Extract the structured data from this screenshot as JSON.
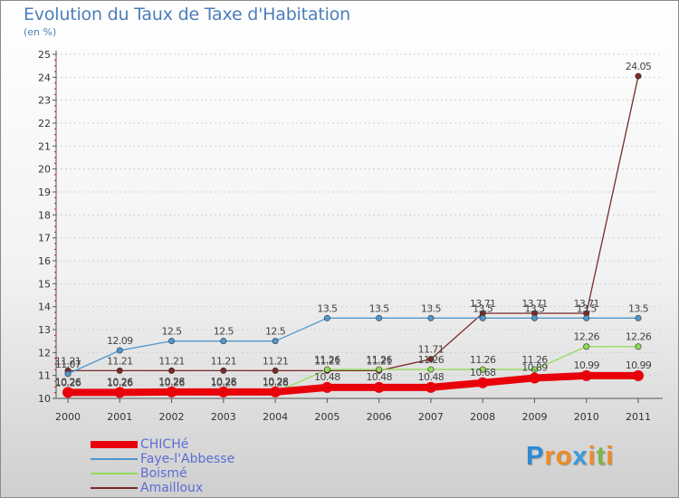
{
  "title": "Evolution du Taux de Taxe d'Habitation",
  "unit_label": "(en %)",
  "brand": {
    "letters": [
      {
        "ch": "P",
        "color": "#2a8bd6"
      },
      {
        "ch": "r",
        "color": "#f08a24"
      },
      {
        "ch": "o",
        "color": "#f08a24"
      },
      {
        "ch": "x",
        "color": "#3a9ad9"
      },
      {
        "ch": "i",
        "color": "#f08a24"
      },
      {
        "ch": "t",
        "color": "#7ab648"
      },
      {
        "ch": "i",
        "color": "#f08a24"
      }
    ]
  },
  "chart_data": {
    "type": "line",
    "title": "Evolution du Taux de Taxe d'Habitation",
    "ylabel": "(en %)",
    "xlabel": "",
    "x": [
      "2000",
      "2001",
      "2002",
      "2003",
      "2004",
      "2005",
      "2006",
      "2007",
      "2008",
      "2009",
      "2010",
      "2011"
    ],
    "ylim": [
      10,
      25
    ],
    "yticks": [
      "10",
      "11",
      "12",
      "13",
      "14",
      "15",
      "16",
      "17",
      "18",
      "19",
      "20",
      "21",
      "22",
      "23",
      "24",
      "25"
    ],
    "grid": "horizontal dashed",
    "legend": "bottom-left",
    "series": [
      {
        "name": "CHICHé",
        "color": "#e8000b",
        "values": [
          10.26,
          10.26,
          10.28,
          10.28,
          10.28,
          10.48,
          10.48,
          10.48,
          10.68,
          10.89,
          10.99,
          10.99
        ],
        "labels": [
          "10.26",
          "10.26",
          "10.28",
          "10.28",
          "10.28",
          "10.48",
          "10.48",
          "10.48",
          "10.68",
          "10.89",
          "10.99",
          "10.99"
        ]
      },
      {
        "name": "Faye-l'Abbesse",
        "color": "#4f97cc",
        "values": [
          11.07,
          12.09,
          12.5,
          12.5,
          12.5,
          13.5,
          13.5,
          13.5,
          13.5,
          13.5,
          13.5,
          13.5
        ],
        "labels": [
          "11.07",
          "12.09",
          "12.5",
          "12.5",
          "12.5",
          "13.5",
          "13.5",
          "13.5",
          "13.5",
          "13.5",
          "13.5",
          "13.5"
        ]
      },
      {
        "name": "Boismé",
        "color": "#8fdc5a",
        "values": [
          10.26,
          10.26,
          10.26,
          10.26,
          10.26,
          11.26,
          11.26,
          11.26,
          11.26,
          11.26,
          12.26,
          12.26
        ],
        "labels": [
          "10.26",
          "10.26",
          "10.26",
          "10.26",
          "10.26",
          "11.26",
          "11.26",
          "11.26",
          "11.26",
          "11.26",
          "12.26",
          "12.26"
        ]
      },
      {
        "name": "Amailloux",
        "color": "#7a2a2a",
        "values": [
          11.21,
          11.21,
          11.21,
          11.21,
          11.21,
          11.21,
          11.21,
          11.71,
          13.71,
          13.71,
          13.71,
          24.05
        ],
        "labels": [
          "11.21",
          "11.21",
          "11.21",
          "11.21",
          "11.21",
          "11.21",
          "11.21",
          "11.71",
          "13.71",
          "13.71",
          "13.71",
          "24.05"
        ]
      }
    ]
  }
}
